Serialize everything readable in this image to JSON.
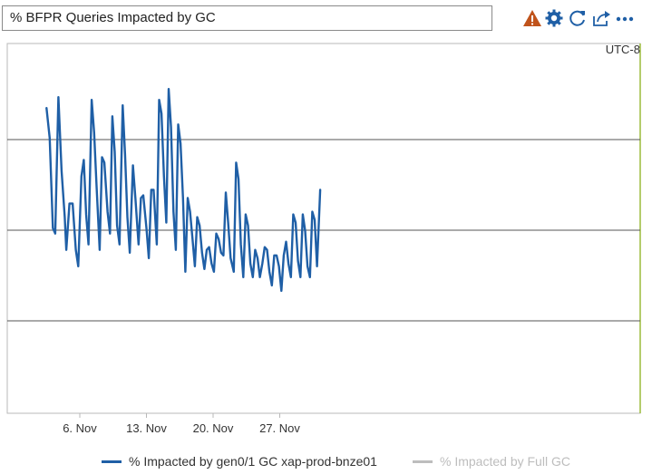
{
  "panel": {
    "title": "% BFPR Queries Impacted by GC",
    "timezone": "UTC-8",
    "icons": [
      "warning-icon",
      "settings-gear-icon",
      "refresh-icon",
      "share-icon",
      "more-icon"
    ]
  },
  "colors": {
    "series_primary": "#1f5fa6",
    "series_secondary": "#bdbdbd",
    "gridline": "#555555",
    "frame": "#b8b8b8",
    "right_edge": "#9bbb3b",
    "warning": "#c0531b",
    "icon_blue": "#1f5fa6"
  },
  "chart_data": {
    "type": "line",
    "title": "% BFPR Queries Impacted by GC",
    "x_axis": {
      "type": "date",
      "tick_labels": [
        "6. Nov",
        "13. Nov",
        "20. Nov",
        "27. Nov"
      ],
      "range": [
        "2023-11-02",
        "2023-11-30"
      ]
    },
    "y_axis": {
      "tick_labels": [],
      "gridlines": 3
    },
    "grid": true,
    "legend_position": "bottom",
    "series": [
      {
        "name": "% Impacted by gen0/1 GC xap-prod-bnze01",
        "points": [
          [
            "2023-11-02 12:00",
            0.78
          ],
          [
            "2023-11-02 20:00",
            0.67
          ],
          [
            "2023-11-03 04:00",
            0.34
          ],
          [
            "2023-11-03 10:00",
            0.32
          ],
          [
            "2023-11-03 18:00",
            0.82
          ],
          [
            "2023-11-04 02:00",
            0.55
          ],
          [
            "2023-11-04 10:00",
            0.38
          ],
          [
            "2023-11-04 14:00",
            0.26
          ],
          [
            "2023-11-04 22:00",
            0.43
          ],
          [
            "2023-11-05 06:00",
            0.43
          ],
          [
            "2023-11-05 14:00",
            0.26
          ],
          [
            "2023-11-05 20:00",
            0.2
          ],
          [
            "2023-11-06 04:00",
            0.53
          ],
          [
            "2023-11-06 10:00",
            0.59
          ],
          [
            "2023-11-06 16:00",
            0.39
          ],
          [
            "2023-11-06 22:00",
            0.28
          ],
          [
            "2023-11-07 06:00",
            0.81
          ],
          [
            "2023-11-07 12:00",
            0.69
          ],
          [
            "2023-11-07 18:00",
            0.5
          ],
          [
            "2023-11-08 02:00",
            0.26
          ],
          [
            "2023-11-08 08:00",
            0.6
          ],
          [
            "2023-11-08 14:00",
            0.58
          ],
          [
            "2023-11-08 22:00",
            0.4
          ],
          [
            "2023-11-09 04:00",
            0.32
          ],
          [
            "2023-11-09 10:00",
            0.75
          ],
          [
            "2023-11-09 16:00",
            0.62
          ],
          [
            "2023-11-09 22:00",
            0.35
          ],
          [
            "2023-11-10 04:00",
            0.28
          ],
          [
            "2023-11-10 12:00",
            0.79
          ],
          [
            "2023-11-10 18:00",
            0.61
          ],
          [
            "2023-11-11 00:00",
            0.38
          ],
          [
            "2023-11-11 06:00",
            0.25
          ],
          [
            "2023-11-11 14:00",
            0.57
          ],
          [
            "2023-11-11 20:00",
            0.45
          ],
          [
            "2023-11-12 04:00",
            0.28
          ],
          [
            "2023-11-12 10:00",
            0.45
          ],
          [
            "2023-11-12 16:00",
            0.46
          ],
          [
            "2023-11-13 00:00",
            0.34
          ],
          [
            "2023-11-13 06:00",
            0.23
          ],
          [
            "2023-11-13 12:00",
            0.48
          ],
          [
            "2023-11-13 18:00",
            0.48
          ],
          [
            "2023-11-14 02:00",
            0.28
          ],
          [
            "2023-11-14 08:00",
            0.81
          ],
          [
            "2023-11-14 14:00",
            0.76
          ],
          [
            "2023-11-14 20:00",
            0.53
          ],
          [
            "2023-11-15 02:00",
            0.36
          ],
          [
            "2023-11-15 08:00",
            0.85
          ],
          [
            "2023-11-15 14:00",
            0.71
          ],
          [
            "2023-11-15 20:00",
            0.4
          ],
          [
            "2023-11-16 02:00",
            0.26
          ],
          [
            "2023-11-16 08:00",
            0.72
          ],
          [
            "2023-11-16 14:00",
            0.65
          ],
          [
            "2023-11-16 20:00",
            0.45
          ],
          [
            "2023-11-17 02:00",
            0.18
          ],
          [
            "2023-11-17 08:00",
            0.45
          ],
          [
            "2023-11-17 14:00",
            0.4
          ],
          [
            "2023-11-17 20:00",
            0.3
          ],
          [
            "2023-11-18 02:00",
            0.2
          ],
          [
            "2023-11-18 08:00",
            0.38
          ],
          [
            "2023-11-18 14:00",
            0.35
          ],
          [
            "2023-11-18 20:00",
            0.25
          ],
          [
            "2023-11-19 02:00",
            0.19
          ],
          [
            "2023-11-19 08:00",
            0.26
          ],
          [
            "2023-11-19 14:00",
            0.27
          ],
          [
            "2023-11-19 20:00",
            0.21
          ],
          [
            "2023-11-20 02:00",
            0.18
          ],
          [
            "2023-11-20 08:00",
            0.32
          ],
          [
            "2023-11-20 14:00",
            0.3
          ],
          [
            "2023-11-20 20:00",
            0.25
          ],
          [
            "2023-11-21 02:00",
            0.24
          ],
          [
            "2023-11-21 08:00",
            0.47
          ],
          [
            "2023-11-21 14:00",
            0.36
          ],
          [
            "2023-11-21 20:00",
            0.23
          ],
          [
            "2023-11-22 04:00",
            0.18
          ],
          [
            "2023-11-22 10:00",
            0.58
          ],
          [
            "2023-11-22 16:00",
            0.52
          ],
          [
            "2023-11-22 22:00",
            0.28
          ],
          [
            "2023-11-23 04:00",
            0.16
          ],
          [
            "2023-11-23 10:00",
            0.39
          ],
          [
            "2023-11-23 16:00",
            0.35
          ],
          [
            "2023-11-23 22:00",
            0.21
          ],
          [
            "2023-11-24 04:00",
            0.16
          ],
          [
            "2023-11-24 10:00",
            0.26
          ],
          [
            "2023-11-24 16:00",
            0.23
          ],
          [
            "2023-11-24 22:00",
            0.16
          ],
          [
            "2023-11-25 04:00",
            0.21
          ],
          [
            "2023-11-25 10:00",
            0.27
          ],
          [
            "2023-11-25 16:00",
            0.26
          ],
          [
            "2023-11-25 22:00",
            0.18
          ],
          [
            "2023-11-26 04:00",
            0.13
          ],
          [
            "2023-11-26 10:00",
            0.24
          ],
          [
            "2023-11-26 16:00",
            0.24
          ],
          [
            "2023-11-26 22:00",
            0.2
          ],
          [
            "2023-11-27 04:00",
            0.11
          ],
          [
            "2023-11-27 10:00",
            0.24
          ],
          [
            "2023-11-27 16:00",
            0.29
          ],
          [
            "2023-11-27 22:00",
            0.21
          ],
          [
            "2023-11-28 04:00",
            0.16
          ],
          [
            "2023-11-28 10:00",
            0.39
          ],
          [
            "2023-11-28 16:00",
            0.36
          ],
          [
            "2023-11-28 22:00",
            0.22
          ],
          [
            "2023-11-29 04:00",
            0.16
          ],
          [
            "2023-11-29 10:00",
            0.39
          ],
          [
            "2023-11-29 16:00",
            0.33
          ],
          [
            "2023-11-29 22:00",
            0.2
          ],
          [
            "2023-11-30 04:00",
            0.16
          ],
          [
            "2023-11-30 10:00",
            0.4
          ],
          [
            "2023-11-30 16:00",
            0.37
          ],
          [
            "2023-11-30 22:00",
            0.2
          ],
          [
            "2023-12-01 06:00",
            0.48
          ]
        ]
      },
      {
        "name": "% Impacted by Full GC",
        "hidden": true,
        "points": []
      }
    ]
  }
}
